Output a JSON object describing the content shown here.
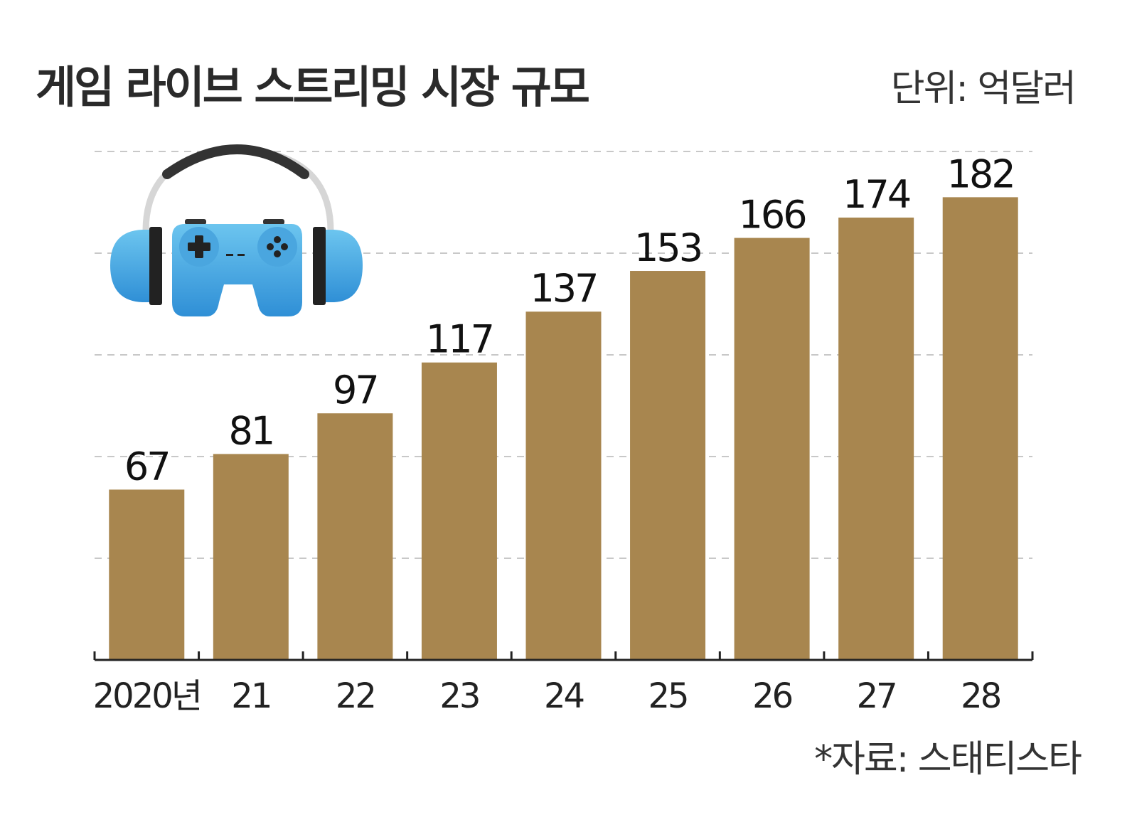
{
  "title": "게임 라이브 스트리밍 시장 규모",
  "unit": "단위: 억달러",
  "source": "*자료: 스태티스타",
  "icon": "gaming-headset-controller-icon",
  "chart_data": {
    "type": "bar",
    "categories": [
      "2020년",
      "21",
      "22",
      "23",
      "24",
      "25",
      "26",
      "27",
      "28"
    ],
    "values": [
      67,
      81,
      97,
      117,
      137,
      153,
      166,
      174,
      182
    ],
    "ylim": [
      0,
      200
    ],
    "grid": true,
    "bar_color": "#a8864f"
  }
}
